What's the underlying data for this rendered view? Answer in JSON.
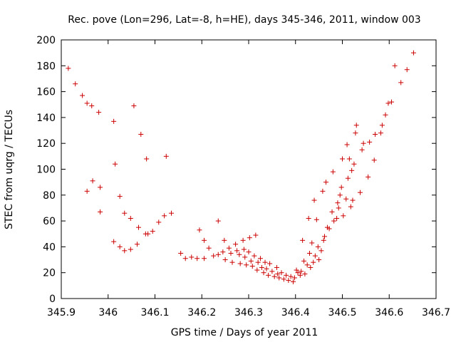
{
  "chart_data": {
    "type": "scatter",
    "title": "Rec. pove (Lon=296, Lat=-8, h=HE), days 345-346, 2011, window 003",
    "xlabel": "GPS time / Days of year 2011",
    "ylabel": "STEC from uqrg / TECUs",
    "xlim": [
      345.9,
      346.7
    ],
    "ylim": [
      0,
      200
    ],
    "x_ticks": [
      345.9,
      346,
      346.1,
      346.2,
      346.3,
      346.4,
      346.5,
      346.6,
      346.7
    ],
    "x_tick_labels": [
      "345.9",
      "346",
      "346.1",
      "346.2",
      "346.3",
      "346.4",
      "346.5",
      "346.6",
      "346.7"
    ],
    "y_ticks": [
      0,
      20,
      40,
      60,
      80,
      100,
      120,
      140,
      160,
      180,
      200
    ],
    "y_tick_labels": [
      "0",
      "20",
      "40",
      "60",
      "80",
      "100",
      "120",
      "140",
      "160",
      "180",
      "200"
    ],
    "marker": "+",
    "color": "#cc0000",
    "points": [
      [
        345.915,
        178
      ],
      [
        345.93,
        166
      ],
      [
        345.945,
        157
      ],
      [
        345.955,
        151
      ],
      [
        345.965,
        149
      ],
      [
        345.98,
        144
      ],
      [
        345.955,
        83
      ],
      [
        345.967,
        91
      ],
      [
        345.983,
        86
      ],
      [
        345.983,
        67
      ],
      [
        346.012,
        137
      ],
      [
        346.015,
        104
      ],
      [
        346.025,
        79
      ],
      [
        346.035,
        66
      ],
      [
        346.048,
        62
      ],
      [
        346.012,
        44
      ],
      [
        346.025,
        40
      ],
      [
        346.035,
        37
      ],
      [
        346.048,
        38
      ],
      [
        346.062,
        42
      ],
      [
        346.055,
        149
      ],
      [
        346.07,
        127
      ],
      [
        346.082,
        108
      ],
      [
        346.065,
        55
      ],
      [
        346.08,
        50
      ],
      [
        346.085,
        50
      ],
      [
        346.095,
        52
      ],
      [
        346.108,
        59
      ],
      [
        346.12,
        64
      ],
      [
        346.124,
        110
      ],
      [
        346.135,
        66
      ],
      [
        346.155,
        35
      ],
      [
        346.165,
        31
      ],
      [
        346.178,
        32
      ],
      [
        346.19,
        31
      ],
      [
        346.205,
        31
      ],
      [
        346.195,
        53
      ],
      [
        346.205,
        45
      ],
      [
        346.215,
        39
      ],
      [
        346.225,
        33
      ],
      [
        346.235,
        34
      ],
      [
        346.235,
        60
      ],
      [
        346.245,
        36
      ],
      [
        346.248,
        45
      ],
      [
        346.25,
        30
      ],
      [
        346.258,
        39
      ],
      [
        346.262,
        35
      ],
      [
        346.265,
        28
      ],
      [
        346.272,
        42
      ],
      [
        346.275,
        37
      ],
      [
        346.28,
        34
      ],
      [
        346.282,
        27
      ],
      [
        346.288,
        45
      ],
      [
        346.29,
        38
      ],
      [
        346.292,
        32
      ],
      [
        346.295,
        26
      ],
      [
        346.3,
        36
      ],
      [
        346.302,
        47
      ],
      [
        346.305,
        29
      ],
      [
        346.308,
        25
      ],
      [
        346.312,
        33
      ],
      [
        346.315,
        49
      ],
      [
        346.318,
        22
      ],
      [
        346.32,
        28
      ],
      [
        346.325,
        31
      ],
      [
        346.328,
        24
      ],
      [
        346.332,
        20
      ],
      [
        346.335,
        28
      ],
      [
        346.338,
        23
      ],
      [
        346.342,
        18
      ],
      [
        346.345,
        27
      ],
      [
        346.35,
        21
      ],
      [
        346.355,
        17
      ],
      [
        346.36,
        24
      ],
      [
        346.362,
        19
      ],
      [
        346.365,
        16
      ],
      [
        346.37,
        20
      ],
      [
        346.375,
        15
      ],
      [
        346.38,
        18
      ],
      [
        346.385,
        14
      ],
      [
        346.39,
        17
      ],
      [
        346.395,
        13
      ],
      [
        346.398,
        16
      ],
      [
        346.402,
        22
      ],
      [
        346.405,
        20
      ],
      [
        346.41,
        18
      ],
      [
        346.412,
        21
      ],
      [
        346.415,
        45
      ],
      [
        346.418,
        29
      ],
      [
        346.42,
        19
      ],
      [
        346.425,
        26
      ],
      [
        346.428,
        62
      ],
      [
        346.43,
        35
      ],
      [
        346.432,
        24
      ],
      [
        346.435,
        43
      ],
      [
        346.438,
        28
      ],
      [
        346.44,
        76
      ],
      [
        346.442,
        33
      ],
      [
        346.445,
        61
      ],
      [
        346.448,
        40
      ],
      [
        346.45,
        30
      ],
      [
        346.455,
        37
      ],
      [
        346.458,
        83
      ],
      [
        346.46,
        45
      ],
      [
        346.462,
        48
      ],
      [
        346.465,
        90
      ],
      [
        346.468,
        55
      ],
      [
        346.472,
        54
      ],
      [
        346.478,
        67
      ],
      [
        346.48,
        98
      ],
      [
        346.482,
        60
      ],
      [
        346.488,
        62
      ],
      [
        346.49,
        74
      ],
      [
        346.492,
        70
      ],
      [
        346.495,
        80
      ],
      [
        346.498,
        86
      ],
      [
        346.5,
        108
      ],
      [
        346.502,
        64
      ],
      [
        346.508,
        77
      ],
      [
        346.51,
        119
      ],
      [
        346.512,
        93
      ],
      [
        346.515,
        108
      ],
      [
        346.518,
        71
      ],
      [
        346.52,
        99
      ],
      [
        346.522,
        76
      ],
      [
        346.525,
        104
      ],
      [
        346.528,
        128
      ],
      [
        346.53,
        134
      ],
      [
        346.538,
        82
      ],
      [
        346.542,
        115
      ],
      [
        346.545,
        120
      ],
      [
        346.555,
        94
      ],
      [
        346.558,
        121
      ],
      [
        346.568,
        107
      ],
      [
        346.57,
        127
      ],
      [
        346.582,
        128
      ],
      [
        346.585,
        134
      ],
      [
        346.592,
        142
      ],
      [
        346.598,
        151
      ],
      [
        346.605,
        152
      ],
      [
        346.612,
        180
      ],
      [
        346.625,
        167
      ],
      [
        346.638,
        177
      ],
      [
        346.652,
        190
      ]
    ]
  }
}
